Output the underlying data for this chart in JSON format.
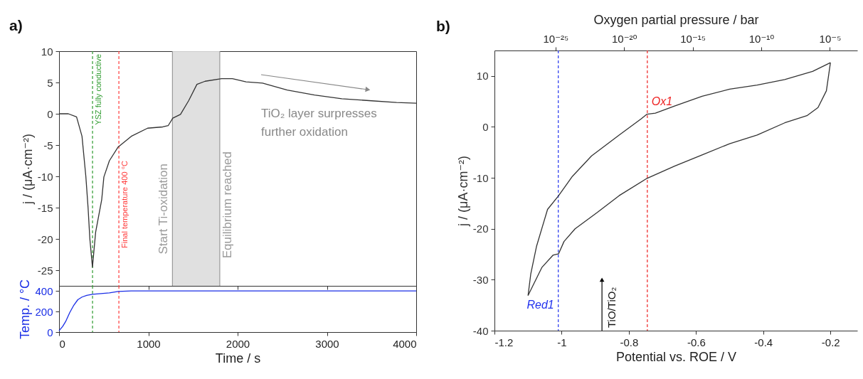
{
  "chart_data": [
    {
      "type": "line",
      "title": "a)",
      "ylabel": "j / (μA·cm⁻²)",
      "xlim": [
        0,
        4000
      ],
      "xticks": [
        0,
        1000,
        2000,
        3000,
        4000
      ],
      "ylim": [
        -27.5,
        10
      ],
      "yticks": [
        -25,
        -20,
        -15,
        -10,
        -5,
        0,
        5,
        10
      ],
      "tick_labels": "y",
      "x": [
        0,
        104,
        196,
        257,
        300,
        325,
        345,
        374,
        390,
        410,
        478,
        502,
        564,
        662,
        809,
        992,
        1161,
        1222,
        1274,
        1360,
        1452,
        1544,
        1636,
        1820,
        1942,
        2095,
        2279,
        2555,
        2861,
        3167,
        3473,
        3780,
        4000
      ],
      "series": [
        {
          "color": "#333333",
          "values": [
            0,
            0,
            -0.5,
            -3.6,
            -10,
            -15,
            -20,
            -24.5,
            -22,
            -18.9,
            -13.7,
            -10.1,
            -7.5,
            -5.3,
            -3.6,
            -2.3,
            -2.1,
            -1.9,
            -0.7,
            -0.1,
            2.1,
            4.7,
            5.2,
            5.6,
            5.6,
            5.1,
            4.9,
            3.8,
            3.0,
            2.4,
            2.1,
            1.8,
            1.7
          ]
        }
      ],
      "bands": [
        {
          "axis": "x",
          "from": 1270,
          "to": 1800,
          "color": "#dddddd"
        }
      ],
      "ref_lines": [
        {
          "axis": "x",
          "value": 375,
          "label": "YSZ fully conductive",
          "color": "#2e9b2e",
          "line_style": "dashed"
        },
        {
          "axis": "x",
          "value": 670,
          "label": "Final temperature 400 °C",
          "color": "#ff3b3b",
          "line_style": "dashed"
        },
        {
          "axis": "x",
          "value": 1270,
          "label": "Start Ti-oxidation",
          "color": "#999999",
          "line_style": "solid"
        },
        {
          "axis": "x",
          "value": 1800,
          "label": "Equilibrium reached",
          "color": "#999999",
          "line_style": "solid"
        }
      ],
      "annotations": [
        "TiO₂ layer surpresses\nfurther oxidation"
      ]
    },
    {
      "type": "line",
      "xlabel": "Time / s",
      "ylabel": "Temp. / °C",
      "xlim": [
        0,
        4000
      ],
      "xticks": [
        0,
        1000,
        2000,
        3000,
        4000
      ],
      "ylim": [
        0,
        450
      ],
      "yticks": [
        0,
        200,
        400
      ],
      "x": [
        0,
        40,
        73,
        120,
        165,
        210,
        257,
        310,
        374,
        470,
        564,
        662,
        809,
        4000
      ],
      "series": [
        {
          "color": "#1a2ee6",
          "values": [
            13,
            55,
            101,
            190,
            261,
            315,
            341,
            358,
            368,
            375,
            381,
            395,
            400,
            400
          ]
        }
      ],
      "ref_lines": [
        {
          "axis": "x",
          "value": 375,
          "color": "#2e9b2e",
          "line_style": "dashed"
        },
        {
          "axis": "x",
          "value": 670,
          "color": "#ff3b3b",
          "line_style": "dashed"
        }
      ]
    },
    {
      "type": "line",
      "title": "b)",
      "xlabel": "Potential vs. ROE / V",
      "ylabel": "j / (μA·cm⁻²)",
      "x2label": "Oxygen partial pressure / bar",
      "log": "x2",
      "xlim": [
        -1.2,
        -0.12
      ],
      "xticks": [
        -1.2,
        -1,
        -0.8,
        -0.6,
        -0.4,
        -0.2
      ],
      "x2lim": [
        3.5e-30,
        0.001
      ],
      "x2ticks": [
        {
          "value": 1e-25,
          "label": "10⁻²⁵"
        },
        {
          "value": 1e-20,
          "label": "10⁻²⁰"
        },
        {
          "value": 1e-15,
          "label": "10⁻¹⁵"
        },
        {
          "value": 1e-10,
          "label": "10⁻¹⁰"
        },
        {
          "value": 1e-05,
          "label": "10⁻⁵"
        }
      ],
      "ylim": [
        -40,
        15
      ],
      "yticks": [
        -40,
        -30,
        -20,
        -10,
        0,
        10
      ],
      "series": [
        {
          "color": "#333333",
          "x": [
            -1.1,
            -1.092,
            -1.075,
            -1.042,
            -1.009,
            -0.968,
            -0.911,
            -0.829,
            -0.763,
            -0.746,
            -0.721,
            -0.664,
            -0.582,
            -0.5,
            -0.418,
            -0.336,
            -0.253,
            -0.2
          ],
          "values": [
            -33.1,
            -28.9,
            -23.5,
            -16.2,
            -13.5,
            -9.7,
            -5.7,
            -1.6,
            1.6,
            2.5,
            2.7,
            4.1,
            6.0,
            7.4,
            8.2,
            9.3,
            10.9,
            12.6
          ]
        },
        {
          "color": "#333333",
          "x": [
            -0.2,
            -0.212,
            -0.237,
            -0.27,
            -0.336,
            -0.418,
            -0.5,
            -0.582,
            -0.664,
            -0.746,
            -0.829,
            -0.894,
            -0.96,
            -0.993,
            -1.009,
            -1.026,
            -1.059,
            -1.1
          ],
          "values": [
            12.6,
            7.1,
            3.8,
            2.2,
            0.8,
            -1.6,
            -3.3,
            -5.5,
            -7.7,
            -10.1,
            -13.5,
            -16.8,
            -20.0,
            -22.5,
            -24.9,
            -25.2,
            -27.6,
            -33.1
          ]
        }
      ],
      "ref_lines": [
        {
          "axis": "x",
          "value": -1.01,
          "label": "Red1",
          "color": "#2233ee",
          "line_style": "dashed"
        },
        {
          "axis": "x",
          "value": -0.745,
          "label": "Ox1",
          "color": "#ee2222",
          "line_style": "dashed"
        }
      ],
      "annotations": [
        {
          "text": "TiO/TiO₂",
          "x": -0.88,
          "y": -30
        }
      ]
    }
  ]
}
